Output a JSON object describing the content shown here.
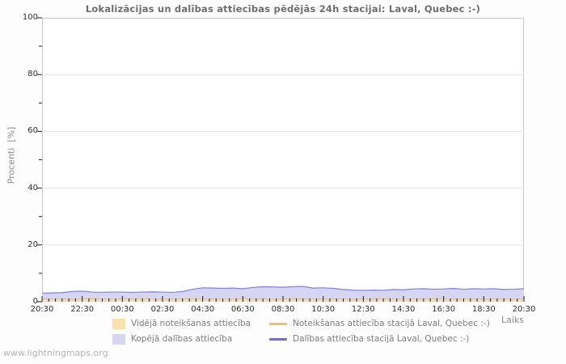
{
  "watermark": "www.lightningmaps.org",
  "chart_data": {
    "type": "area",
    "title": "Lokalizācijas un dalības attiecības pēdējās 24h stacijai: Laval, Quebec :-)",
    "xlabel": "Laiks",
    "ylabel": "Procenti  [%]",
    "ylim": [
      0,
      100
    ],
    "grid": "horizontal-major",
    "legend_position": "bottom",
    "y_major_ticks": [
      0,
      20,
      40,
      60,
      80,
      100
    ],
    "y_minor_ticks": [
      10,
      30,
      50,
      70,
      90
    ],
    "x_tick_labels": [
      "20:30",
      "22:30",
      "00:30",
      "02:30",
      "04:30",
      "06:30",
      "08:30",
      "10:30",
      "12:30",
      "14:30",
      "16:30",
      "18:30",
      "20:30"
    ],
    "x_start": "20:30",
    "x_step_minutes": 30,
    "x_minor_tick_minutes": 20,
    "x_major_tick_minutes": 120,
    "colors": {
      "plot_bg": "#ffffff",
      "border": "#c9c9c9",
      "grid": "#e3e3e3",
      "tick": "#1c1c1c"
    },
    "series": [
      {
        "key": "total-participation",
        "name": "Kopējā dalības attiecība",
        "type": "area",
        "color": "#d6d6f4",
        "opacity": 1,
        "values": [
          3.0,
          3.1,
          3.2,
          3.6,
          3.7,
          3.4,
          3.3,
          3.4,
          3.4,
          3.3,
          3.4,
          3.5,
          3.4,
          3.3,
          3.6,
          4.4,
          4.9,
          4.8,
          4.7,
          4.8,
          4.6,
          5.0,
          5.3,
          5.2,
          5.1,
          5.3,
          5.4,
          4.8,
          4.9,
          4.7,
          4.3,
          4.1,
          4.0,
          4.1,
          4.0,
          4.3,
          4.2,
          4.5,
          4.6,
          4.4,
          4.5,
          4.7,
          4.4,
          4.6,
          4.5,
          4.6,
          4.3,
          4.4,
          4.6
        ]
      },
      {
        "key": "avg-detection",
        "name": "Vidējā noteikšanas attiecība",
        "type": "area",
        "color": "#fae0ae",
        "opacity": 0.65,
        "values": [
          1.0,
          1.1,
          0.9,
          1.0,
          1.1,
          1.0,
          0.9,
          1.0,
          1.0,
          1.1,
          1.0,
          0.9,
          1.0,
          1.1,
          1.0,
          1.0,
          0.9,
          1.0,
          1.1,
          1.0,
          1.0,
          1.1,
          1.0,
          0.9,
          1.0,
          1.0,
          1.1,
          1.2,
          1.0,
          1.0,
          0.9,
          1.0,
          1.0,
          1.1,
          1.0,
          0.9,
          1.0,
          1.0,
          1.1,
          1.0,
          1.0,
          0.9,
          1.0,
          1.1,
          1.0,
          1.0,
          0.9,
          1.0,
          1.0
        ]
      },
      {
        "key": "station-detection",
        "name": "Noteikšanas attiecība stacijā Laval, Quebec :-)",
        "type": "line",
        "color": "#f0c064",
        "opacity": 0.85,
        "values": [
          0.9,
          1.0,
          1.0,
          0.9,
          1.0,
          1.1,
          1.0,
          0.9,
          1.0,
          1.0,
          1.1,
          1.0,
          0.9,
          1.0,
          1.0,
          1.1,
          1.0,
          0.9,
          1.0,
          1.0,
          1.1,
          1.0,
          1.0,
          0.9,
          1.0,
          1.1,
          1.0,
          1.0,
          0.9,
          1.0,
          1.0,
          0.9,
          1.0,
          1.0,
          1.1,
          1.0,
          0.9,
          1.0,
          1.0,
          1.1,
          1.0,
          0.9,
          1.0,
          1.0,
          0.9,
          1.0,
          1.0,
          0.9,
          1.0
        ]
      },
      {
        "key": "station-participation",
        "name": "Dalības attiecība stacijā Laval, Quebec :-)",
        "type": "line",
        "color": "#7676d8",
        "opacity": 0.9,
        "values": [
          3.0,
          3.1,
          3.2,
          3.6,
          3.7,
          3.4,
          3.3,
          3.4,
          3.4,
          3.3,
          3.4,
          3.5,
          3.4,
          3.3,
          3.6,
          4.4,
          4.9,
          4.8,
          4.7,
          4.8,
          4.6,
          5.0,
          5.3,
          5.2,
          5.1,
          5.3,
          5.4,
          4.8,
          4.9,
          4.7,
          4.3,
          4.1,
          4.0,
          4.1,
          4.0,
          4.3,
          4.2,
          4.5,
          4.6,
          4.4,
          4.5,
          4.7,
          4.4,
          4.6,
          4.5,
          4.6,
          4.3,
          4.4,
          4.6
        ]
      }
    ]
  },
  "legend": {
    "items": [
      {
        "label": "Vidējā noteikšanas attiecība",
        "swatch": "fill",
        "color": "#fae0ae"
      },
      {
        "label": "Noteikšanas attiecība stacijā Laval, Quebec :-)",
        "swatch": "line",
        "color": "#f0c064"
      },
      {
        "label": "Kopējā dalības attiecība",
        "swatch": "fill",
        "color": "#d6d6f4"
      },
      {
        "label": "Dalības attiecība stacijā Laval, Quebec :-)",
        "swatch": "line",
        "color": "#6f6fd6"
      }
    ]
  }
}
